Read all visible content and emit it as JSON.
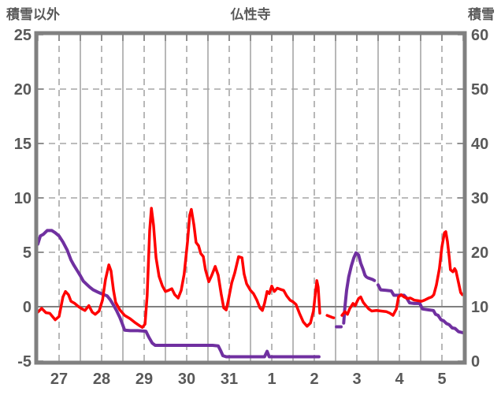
{
  "chart_data": {
    "type": "line",
    "title": "仏性寺",
    "left_axis": {
      "title": "積雪以外",
      "ticks": [
        25,
        20,
        15,
        10,
        5,
        0,
        -5
      ],
      "min": -5,
      "max": 25
    },
    "right_axis": {
      "title": "積雪",
      "ticks": [
        60,
        50,
        40,
        30,
        20,
        10,
        0
      ],
      "min": 0,
      "max": 60
    },
    "x_axis": {
      "labels": [
        "27",
        "28",
        "29",
        "30",
        "31",
        "1",
        "2",
        "3",
        "4",
        "5"
      ],
      "days": 10
    },
    "grid": {
      "horizontal_dashed_left_values": [
        20,
        15,
        10,
        5
      ],
      "zero_line_left_value": 0,
      "vertical_solid": "day-boundaries",
      "vertical_dashed": "day-midpoints"
    },
    "colors": {
      "red_series": "#FF0000",
      "purple_series": "#7030A0",
      "grid": "#A6A6A6",
      "axis": "#808080",
      "text": "#595959"
    },
    "series": [
      {
        "id": "purple-line",
        "axis": "right",
        "color": "#7030A0",
        "width": 4,
        "segments": [
          {
            "style": "solid",
            "points": [
              [
                0,
                21.5
              ],
              [
                0.06,
                23
              ],
              [
                0.13,
                23.3
              ],
              [
                0.22,
                24
              ],
              [
                0.33,
                24
              ],
              [
                0.41,
                23.6
              ],
              [
                0.5,
                23
              ],
              [
                0.59,
                21.9
              ],
              [
                0.69,
                20.4
              ],
              [
                0.78,
                18.6
              ],
              [
                0.85,
                17.6
              ],
              [
                0.93,
                16.6
              ],
              [
                1,
                15.7
              ],
              [
                1.07,
                14.7
              ],
              [
                1.15,
                14.1
              ],
              [
                1.22,
                13.6
              ],
              [
                1.3,
                13.1
              ],
              [
                1.41,
                12.7
              ],
              [
                1.52,
                12.3
              ],
              [
                1.63,
                12
              ],
              [
                1.7,
                11.3
              ],
              [
                1.78,
                10.3
              ],
              [
                1.85,
                9.3
              ],
              [
                1.93,
                8
              ],
              [
                1.98,
                7
              ],
              [
                2.04,
                5.7
              ],
              [
                2.17,
                5.6
              ],
              [
                2.35,
                5.6
              ],
              [
                2.54,
                5.5
              ],
              [
                2.61,
                4.4
              ],
              [
                2.69,
                3.3
              ],
              [
                2.76,
                2.9
              ],
              [
                3,
                2.9
              ],
              [
                3.37,
                2.9
              ],
              [
                3.74,
                2.9
              ],
              [
                4.11,
                2.9
              ],
              [
                4.24,
                2.8
              ],
              [
                4.3,
                1.9
              ],
              [
                4.35,
                1
              ],
              [
                4.43,
                0.8
              ],
              [
                4.67,
                0.8
              ],
              [
                5.04,
                0.8
              ],
              [
                5.33,
                0.8
              ],
              [
                5.39,
                1.8
              ],
              [
                5.44,
                0.8
              ],
              [
                5.78,
                0.8
              ],
              [
                6.15,
                0.8
              ],
              [
                6.52,
                0.8
              ],
              [
                6.61,
                0.8
              ]
            ]
          },
          {
            "style": "dashed",
            "points": [
              [
                7.02,
                6.3
              ],
              [
                7.13,
                6.3
              ]
            ]
          },
          {
            "style": "solid",
            "points": [
              [
                7.19,
                7
              ],
              [
                7.22,
                10
              ],
              [
                7.26,
                13
              ],
              [
                7.31,
                15.5
              ],
              [
                7.37,
                17.5
              ],
              [
                7.43,
                19
              ],
              [
                7.48,
                19.9
              ],
              [
                7.54,
                19.5
              ],
              [
                7.59,
                18
              ],
              [
                7.65,
                16.8
              ],
              [
                7.69,
                15.8
              ],
              [
                7.72,
                15.5
              ]
            ]
          },
          {
            "style": "dashed",
            "points": [
              [
                7.76,
                15.3
              ],
              [
                7.87,
                15
              ],
              [
                7.96,
                14.6
              ]
            ]
          },
          {
            "style": "solid",
            "points": [
              [
                8,
                14
              ],
              [
                8.06,
                13.1
              ],
              [
                8.19,
                13
              ],
              [
                8.31,
                12.9
              ],
              [
                8.37,
                12.1
              ],
              [
                8.61,
                12.1
              ],
              [
                8.67,
                11.6
              ],
              [
                8.74,
                10.7
              ],
              [
                8.85,
                10.6
              ],
              [
                8.98,
                10.6
              ],
              [
                9.04,
                9.6
              ],
              [
                9.2,
                9.4
              ],
              [
                9.3,
                9.3
              ],
              [
                9.35,
                8.6
              ],
              [
                9.41,
                8.4
              ],
              [
                9.48,
                7.6
              ],
              [
                9.54,
                7.4
              ],
              [
                9.61,
                6.9
              ],
              [
                9.67,
                6.7
              ],
              [
                9.74,
                6.1
              ],
              [
                9.81,
                6
              ],
              [
                9.89,
                5.4
              ],
              [
                10,
                5.2
              ]
            ]
          }
        ]
      },
      {
        "id": "red-line",
        "axis": "left",
        "color": "#FF0000",
        "width": 3.5,
        "segments": [
          {
            "style": "solid",
            "points": [
              [
                0,
                -0.5
              ],
              [
                0.09,
                -0.15
              ],
              [
                0.19,
                -0.55
              ],
              [
                0.28,
                -0.6
              ],
              [
                0.41,
                -1.2
              ],
              [
                0.5,
                -0.9
              ],
              [
                0.59,
                0.9
              ],
              [
                0.65,
                1.4
              ],
              [
                0.72,
                1.1
              ],
              [
                0.78,
                0.5
              ],
              [
                0.87,
                0.3
              ],
              [
                0.96,
                0
              ],
              [
                1.04,
                -0.2
              ],
              [
                1.11,
                -0.35
              ],
              [
                1.2,
                0.1
              ],
              [
                1.28,
                -0.5
              ],
              [
                1.35,
                -0.7
              ],
              [
                1.44,
                -0.4
              ],
              [
                1.52,
                0.6
              ],
              [
                1.59,
                2.5
              ],
              [
                1.67,
                3.85
              ],
              [
                1.72,
                3.3
              ],
              [
                1.78,
                1.5
              ],
              [
                1.83,
                0.4
              ],
              [
                1.93,
                -0.3
              ],
              [
                2.04,
                -0.8
              ],
              [
                2.17,
                -1.1
              ],
              [
                2.3,
                -1.5
              ],
              [
                2.39,
                -1.75
              ],
              [
                2.46,
                -1.9
              ],
              [
                2.52,
                -1.6
              ],
              [
                2.57,
                1
              ],
              [
                2.63,
                7
              ],
              [
                2.67,
                9.05
              ],
              [
                2.72,
                7.5
              ],
              [
                2.78,
                4.5
              ],
              [
                2.85,
                2.8
              ],
              [
                2.93,
                1.9
              ],
              [
                3,
                1.4
              ],
              [
                3.07,
                1.5
              ],
              [
                3.15,
                1.65
              ],
              [
                3.22,
                1.1
              ],
              [
                3.3,
                0.8
              ],
              [
                3.37,
                1.5
              ],
              [
                3.44,
                3
              ],
              [
                3.52,
                6
              ],
              [
                3.57,
                8.4
              ],
              [
                3.61,
                8.95
              ],
              [
                3.67,
                7.5
              ],
              [
                3.72,
                5.9
              ],
              [
                3.78,
                5.6
              ],
              [
                3.83,
                4.9
              ],
              [
                3.89,
                4.6
              ],
              [
                3.94,
                3.4
              ],
              [
                4.02,
                2.3
              ],
              [
                4.09,
                2.9
              ],
              [
                4.17,
                3.7
              ],
              [
                4.24,
                2.9
              ],
              [
                4.31,
                1.2
              ],
              [
                4.37,
                -0.1
              ],
              [
                4.43,
                -0.3
              ],
              [
                4.48,
                0.6
              ],
              [
                4.56,
                2.2
              ],
              [
                4.63,
                3.1
              ],
              [
                4.72,
                4.6
              ],
              [
                4.8,
                4.5
              ],
              [
                4.85,
                3
              ],
              [
                4.91,
                2.1
              ],
              [
                5,
                1.5
              ],
              [
                5.07,
                1.2
              ],
              [
                5.15,
                0.6
              ],
              [
                5.22,
                -0.1
              ],
              [
                5.28,
                -0.35
              ],
              [
                5.33,
                0.3
              ],
              [
                5.39,
                1.4
              ],
              [
                5.44,
                1.2
              ],
              [
                5.5,
                1.9
              ],
              [
                5.56,
                1.4
              ],
              [
                5.63,
                1.7
              ],
              [
                5.7,
                1.6
              ],
              [
                5.78,
                1.5
              ],
              [
                5.85,
                1
              ],
              [
                5.93,
                0.6
              ],
              [
                6,
                0.45
              ],
              [
                6.07,
                0.2
              ],
              [
                6.15,
                -0.6
              ],
              [
                6.24,
                -1.4
              ],
              [
                6.33,
                -1.8
              ],
              [
                6.41,
                -1.5
              ],
              [
                6.48,
                -0.4
              ],
              [
                6.56,
                2.4
              ],
              [
                6.59,
                1.8
              ],
              [
                6.63,
                -0.6
              ]
            ]
          },
          {
            "style": "dashed",
            "points": [
              [
                6.8,
                -0.8
              ],
              [
                6.93,
                -1
              ],
              [
                7.06,
                -1.1
              ]
            ]
          },
          {
            "style": "solid",
            "points": [
              [
                7.15,
                -0.8
              ],
              [
                7.22,
                -0.45
              ],
              [
                7.28,
                -0.7
              ],
              [
                7.33,
                -0.2
              ],
              [
                7.41,
                0.3
              ],
              [
                7.46,
                0.1
              ],
              [
                7.54,
                0.75
              ],
              [
                7.59,
                0.9
              ],
              [
                7.65,
                0.4
              ],
              [
                7.7,
                0.15
              ],
              [
                7.78,
                -0.2
              ],
              [
                7.85,
                -0.4
              ],
              [
                7.96,
                -0.35
              ],
              [
                8.07,
                -0.4
              ],
              [
                8.19,
                -0.45
              ],
              [
                8.28,
                -0.6
              ],
              [
                8.35,
                -0.8
              ],
              [
                8.43,
                -0.2
              ],
              [
                8.48,
                0.9
              ],
              [
                8.54,
                1.1
              ],
              [
                8.61,
                0.9
              ],
              [
                8.69,
                0.75
              ],
              [
                8.76,
                0.8
              ],
              [
                8.85,
                0.6
              ],
              [
                8.94,
                0.55
              ],
              [
                9.02,
                0.5
              ],
              [
                9.09,
                0.6
              ],
              [
                9.19,
                0.8
              ],
              [
                9.26,
                0.9
              ],
              [
                9.31,
                1.1
              ],
              [
                9.37,
                2
              ],
              [
                9.44,
                3.5
              ],
              [
                9.5,
                5.5
              ],
              [
                9.56,
                6.8
              ],
              [
                9.59,
                6.9
              ],
              [
                9.63,
                6
              ],
              [
                9.67,
                4.6
              ],
              [
                9.7,
                3.4
              ],
              [
                9.76,
                3.2
              ],
              [
                9.8,
                3.5
              ],
              [
                9.83,
                3.3
              ],
              [
                9.89,
                2.2
              ],
              [
                9.94,
                1.3
              ],
              [
                9.98,
                1.1
              ]
            ]
          }
        ]
      }
    ]
  }
}
